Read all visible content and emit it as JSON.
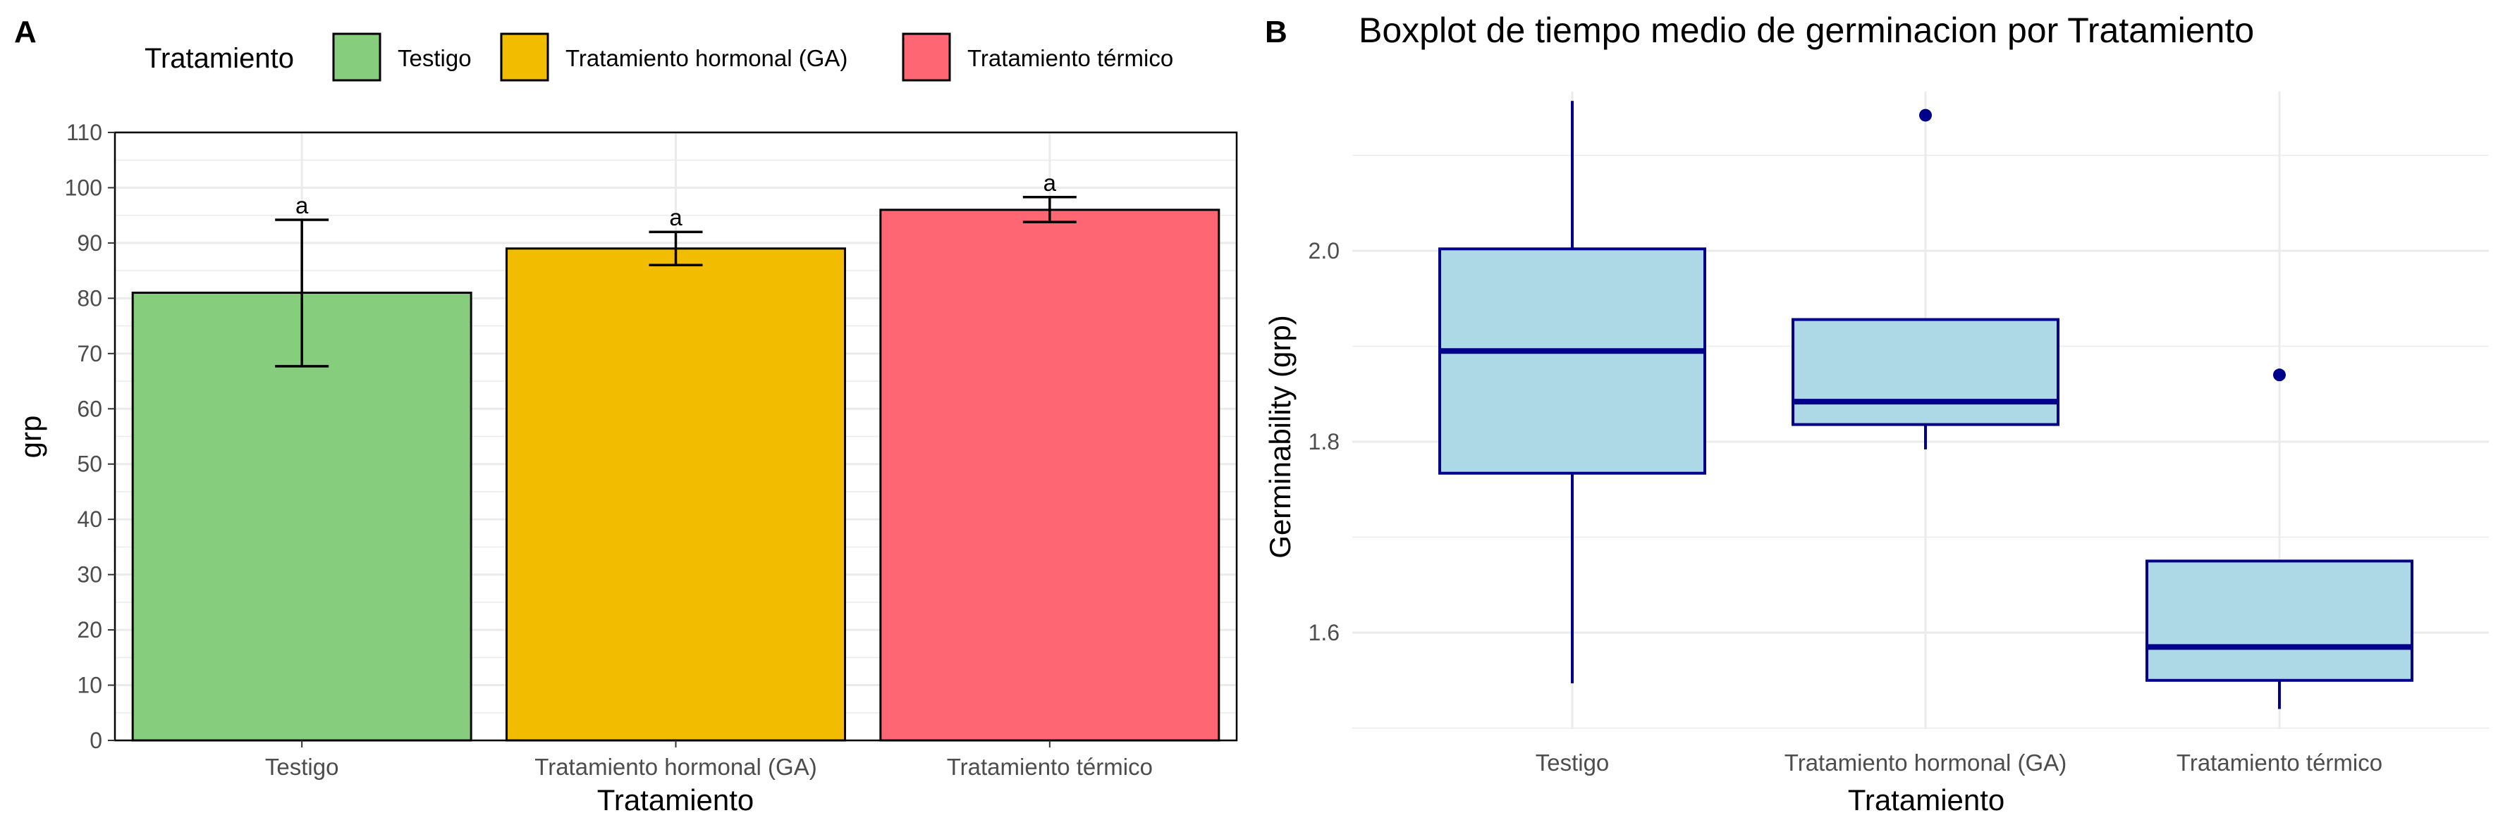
{
  "panel_labels": [
    "A",
    "B"
  ],
  "colors": {
    "testigo": "#86CD7E",
    "hormonal": "#F2BC00",
    "termico": "#FF6673",
    "box_fill": "#ADD8E6",
    "box_line": "#00008B",
    "grid": "#EBEBEB",
    "tick_text": "#4D4D4D"
  },
  "chart_data": [
    {
      "type": "bar",
      "panel": "A",
      "title": "",
      "xlabel": "Tratamiento",
      "ylabel": "grp",
      "categories": [
        "Testigo",
        "Tratamiento hormonal (GA)",
        "Tratamiento térmico"
      ],
      "values": [
        81,
        89,
        96
      ],
      "error_low": [
        67.7,
        86,
        93.8
      ],
      "error_high": [
        94.2,
        92,
        98.3
      ],
      "significance_letters": [
        "a",
        "a",
        "a"
      ],
      "ylim": [
        0,
        110
      ],
      "yticks": [
        0,
        10,
        20,
        30,
        40,
        50,
        60,
        70,
        80,
        90,
        100,
        110
      ],
      "grid": true,
      "legend": {
        "title": "Tratamiento",
        "position": "top",
        "entries": [
          "Testigo",
          "Tratamiento hormonal (GA)",
          "Tratamiento térmico"
        ]
      }
    },
    {
      "type": "boxplot",
      "panel": "B",
      "title": "Boxplot de tiempo medio de germinacion por Tratamiento",
      "xlabel": "Tratamiento",
      "ylabel": "Germinability (grp)",
      "categories": [
        "Testigo",
        "Tratamiento hormonal (GA)",
        "Tratamiento térmico"
      ],
      "boxes": [
        {
          "whisker_low": 1.547,
          "q1": 1.767,
          "median": 1.895,
          "q3": 2.002,
          "whisker_high": 2.157,
          "outliers": []
        },
        {
          "whisker_low": 1.792,
          "q1": 1.818,
          "median": 1.842,
          "q3": 1.928,
          "whisker_high": 1.928,
          "outliers": [
            2.142
          ]
        },
        {
          "whisker_low": 1.52,
          "q1": 1.55,
          "median": 1.585,
          "q3": 1.675,
          "whisker_high": 1.675,
          "outliers": [
            1.87
          ]
        }
      ],
      "ylim": [
        1.5,
        2.2
      ],
      "yticks": [
        1.6,
        1.8,
        2.0
      ],
      "ytick_labels": [
        "1.6",
        "1.8",
        "2.0"
      ],
      "grid": true
    }
  ]
}
